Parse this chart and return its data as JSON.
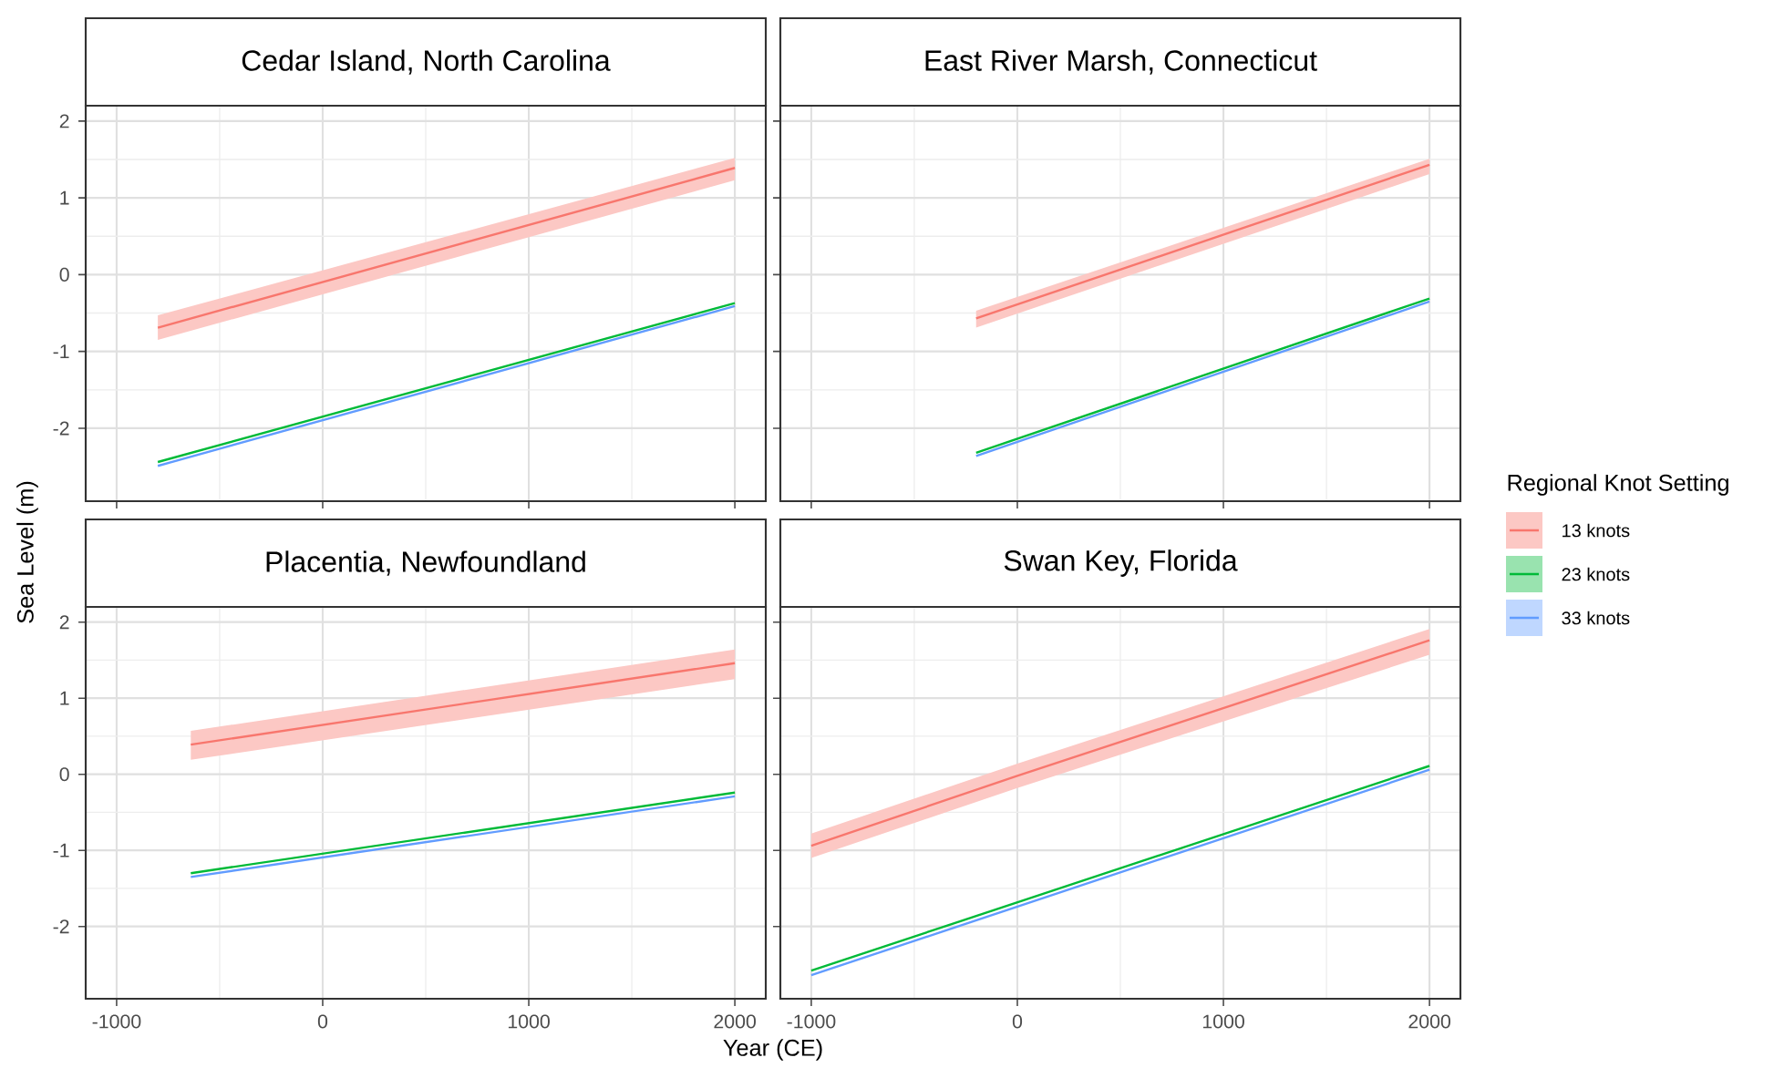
{
  "chart_data": [
    {
      "type": "line",
      "title": "Cedar Island, North Carolina",
      "ylabel": "Sea Level (m)",
      "xlim": [
        -1150,
        2150
      ],
      "ylim": [
        -2.95,
        2.2
      ],
      "xticks": [
        -1000,
        0,
        1000,
        2000
      ],
      "yticks": [
        -2,
        -1,
        0,
        1,
        2
      ],
      "grid": true,
      "tick_labels": "y",
      "series": [
        {
          "color": "#f8766d",
          "x": [
            -800,
            2000
          ],
          "values": [
            -0.69,
            1.39
          ],
          "lower": [
            -0.85,
            1.23
          ],
          "upper": [
            -0.53,
            1.52
          ]
        },
        {
          "color": "#00ba38",
          "x": [
            -800,
            2000
          ],
          "values": [
            -2.44,
            -0.37
          ]
        },
        {
          "color": "#619cff",
          "x": [
            -800,
            2000
          ],
          "values": [
            -2.49,
            -0.41
          ]
        }
      ]
    },
    {
      "type": "line",
      "title": "East River Marsh, Connecticut",
      "legend_title": "Regional Knot Setting",
      "legend": "right",
      "xlim": [
        -1150,
        2150
      ],
      "ylim": [
        -2.95,
        2.2
      ],
      "xticks": [
        -1000,
        0,
        1000,
        2000
      ],
      "yticks": [
        -2,
        -1,
        0,
        1,
        2
      ],
      "grid": true,
      "tick_labels": false,
      "series": [
        {
          "name": "13 knots",
          "color": "#f8766d",
          "x": [
            -200,
            2000
          ],
          "values": [
            -0.57,
            1.43
          ],
          "lower": [
            -0.69,
            1.31
          ],
          "upper": [
            -0.47,
            1.51
          ]
        },
        {
          "name": "23 knots",
          "color": "#00ba38",
          "x": [
            -200,
            2000
          ],
          "values": [
            -2.32,
            -0.31
          ]
        },
        {
          "name": "33 knots",
          "color": "#619cff",
          "x": [
            -200,
            2000
          ],
          "values": [
            -2.36,
            -0.35
          ]
        }
      ]
    },
    {
      "type": "line",
      "title": "Placentia, Newfoundland",
      "xlabel": "Year (CE)",
      "xlim": [
        -1150,
        2150
      ],
      "ylim": [
        -2.95,
        2.2
      ],
      "xticks": [
        -1000,
        0,
        1000,
        2000
      ],
      "yticks": [
        -2,
        -1,
        0,
        1,
        2
      ],
      "grid": true,
      "series": [
        {
          "color": "#f8766d",
          "x": [
            -640,
            2000
          ],
          "values": [
            0.39,
            1.46
          ],
          "lower": [
            0.19,
            1.25
          ],
          "upper": [
            0.57,
            1.64
          ]
        },
        {
          "color": "#00ba38",
          "x": [
            -640,
            2000
          ],
          "values": [
            -1.3,
            -0.24
          ]
        },
        {
          "color": "#619cff",
          "x": [
            -640,
            2000
          ],
          "values": [
            -1.35,
            -0.29
          ]
        }
      ]
    },
    {
      "type": "line",
      "title": "Swan Key, Florida",
      "xlim": [
        -1150,
        2150
      ],
      "ylim": [
        -2.95,
        2.2
      ],
      "xticks": [
        -1000,
        0,
        1000,
        2000
      ],
      "yticks": [
        -2,
        -1,
        0,
        1,
        2
      ],
      "grid": true,
      "tick_labels": "x",
      "series": [
        {
          "color": "#f8766d",
          "x": [
            -1000,
            0,
            2000
          ],
          "values": [
            -0.94,
            -0.02,
            1.76
          ],
          "lower": [
            -1.1,
            -0.18,
            1.57
          ],
          "upper": [
            -0.78,
            0.14,
            1.91
          ]
        },
        {
          "color": "#00ba38",
          "x": [
            -1000,
            2000
          ],
          "values": [
            -2.58,
            0.11
          ]
        },
        {
          "color": "#619cff",
          "x": [
            -1000,
            2000
          ],
          "values": [
            -2.64,
            0.06
          ]
        }
      ]
    }
  ]
}
